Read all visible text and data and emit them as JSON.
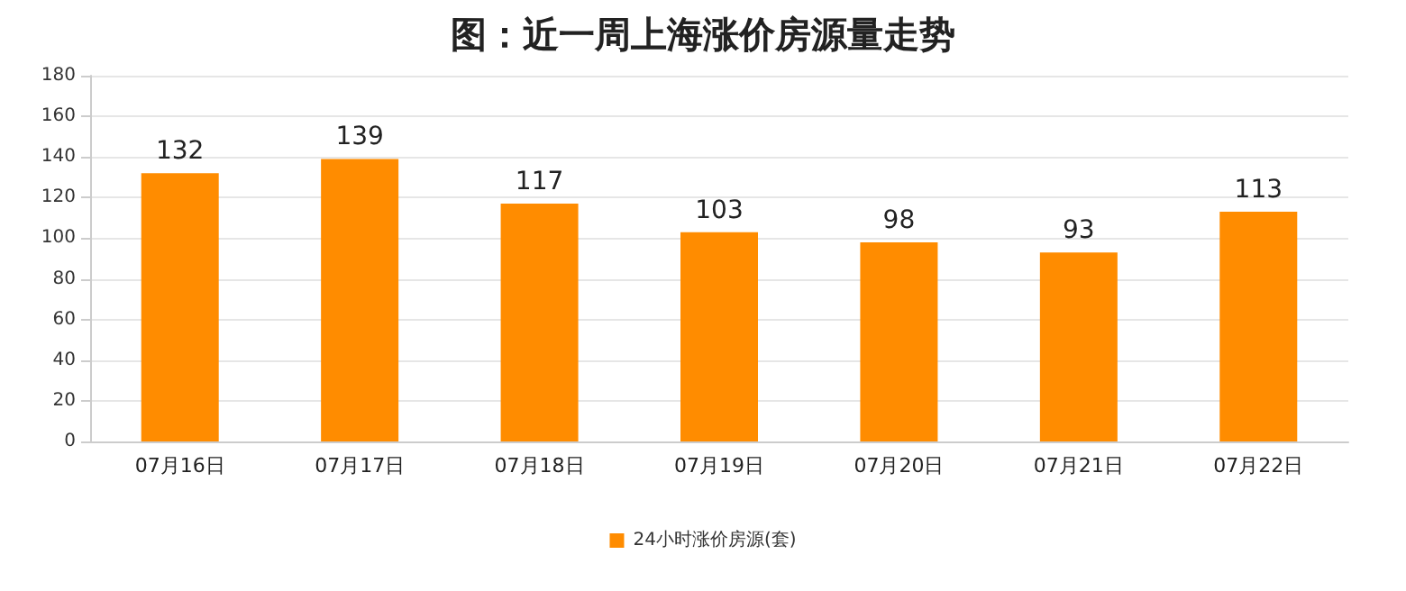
{
  "chart_data": {
    "type": "bar",
    "title": "图：近一周上海涨价房源量走势",
    "categories": [
      "07月16日",
      "07月17日",
      "07月18日",
      "07月19日",
      "07月20日",
      "07月21日",
      "07月22日"
    ],
    "series": [
      {
        "name": "24小时涨价房源(套)",
        "color": "#ff8c00",
        "values": [
          132,
          139,
          117,
          103,
          98,
          93,
          113
        ]
      }
    ],
    "ylim": [
      0,
      180
    ],
    "yticks": [
      0,
      20,
      40,
      60,
      80,
      100,
      120,
      140,
      160,
      180
    ],
    "grid": "y",
    "legend": "bottom",
    "data_labels": true
  }
}
